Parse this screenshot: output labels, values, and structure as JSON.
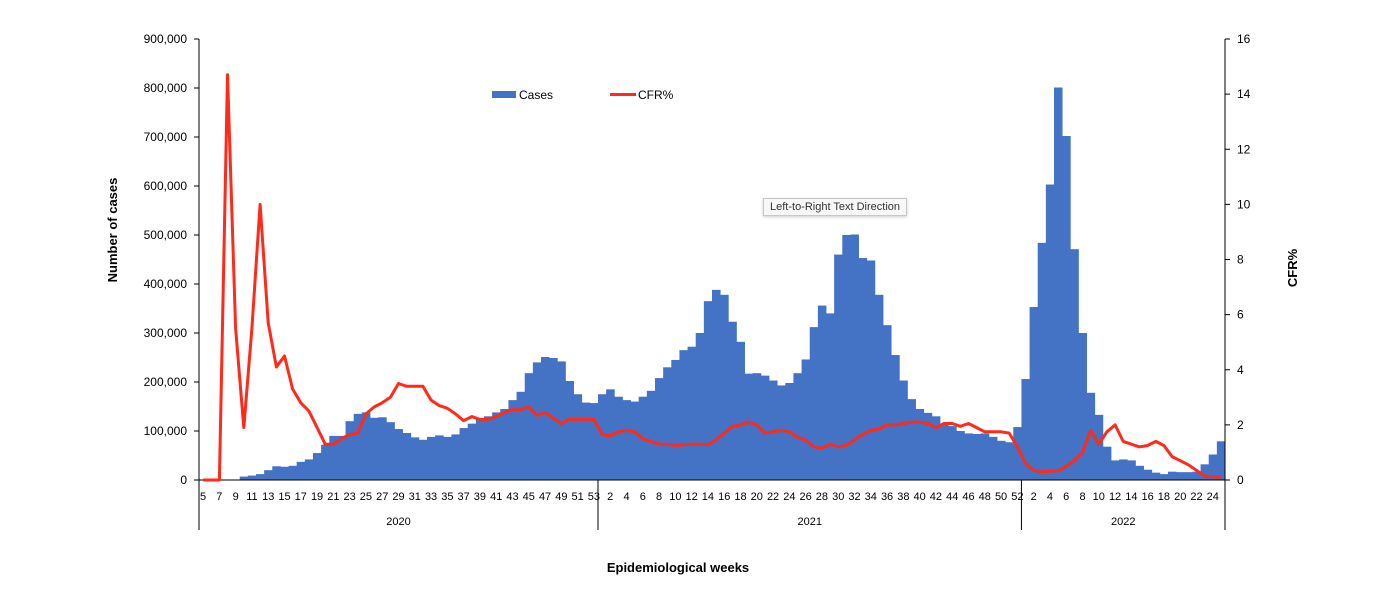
{
  "chart_data": {
    "type": "bar+line",
    "xlabel": "Epidemiological weeks",
    "ylabel": "Number of cases",
    "y2label": "CFR%",
    "ylim": [
      0,
      900000
    ],
    "y2lim": [
      0,
      16
    ],
    "yticks": [
      "0",
      "100,000",
      "200,000",
      "300,000",
      "400,000",
      "500,000",
      "600,000",
      "700,000",
      "800,000",
      "900,000"
    ],
    "y2ticks": [
      "0",
      "2",
      "4",
      "6",
      "8",
      "10",
      "12",
      "14",
      "16"
    ],
    "legend": {
      "position": "top-center",
      "entries": [
        "Cases",
        "CFR%"
      ]
    },
    "colors": {
      "cases": "#4472C4",
      "cfr": "#FF2A1A"
    },
    "years": [
      {
        "year": "2020",
        "start_week": 5,
        "weeks": 49,
        "label_parity": 1
      },
      {
        "year": "2021",
        "start_week": 1,
        "weeks": 52,
        "label_parity": 0
      },
      {
        "year": "2022",
        "start_week": 1,
        "weeks": 25,
        "label_parity": 0
      }
    ],
    "series": [
      {
        "name": "Cases",
        "type": "bar",
        "values": [
          0,
          0,
          0,
          0,
          0,
          7000,
          9000,
          12000,
          20000,
          28000,
          27000,
          29000,
          37000,
          42000,
          55000,
          72000,
          90000,
          90000,
          120000,
          135000,
          138000,
          127000,
          128000,
          118000,
          104000,
          96000,
          87000,
          82000,
          88000,
          91000,
          88000,
          93000,
          106000,
          115000,
          125000,
          130000,
          138000,
          145000,
          163000,
          180000,
          218000,
          240000,
          251000,
          249000,
          242000,
          202000,
          175000,
          158000,
          157000,
          175000,
          185000,
          170000,
          163000,
          160000,
          170000,
          182000,
          208000,
          230000,
          245000,
          265000,
          272000,
          300000,
          365000,
          388000,
          378000,
          323000,
          282000,
          217000,
          218000,
          213000,
          203000,
          193000,
          198000,
          218000,
          246000,
          312000,
          356000,
          340000,
          460000,
          500000,
          501000,
          453000,
          448000,
          378000,
          316000,
          255000,
          203000,
          165000,
          145000,
          137000,
          130000,
          113000,
          110000,
          100000,
          95000,
          94000,
          95000,
          88000,
          80000,
          77000,
          108000,
          206000,
          353000,
          484000,
          603000,
          801000,
          702000,
          471000,
          300000,
          178000,
          133000,
          68000,
          40000,
          42000,
          40000,
          29000,
          21000,
          15000,
          12000,
          17000,
          16000,
          16000,
          17000,
          32000,
          52000,
          79000
        ]
      },
      {
        "name": "CFR%",
        "type": "line",
        "axis": "right",
        "values": [
          0,
          0,
          0,
          14.7,
          5.5,
          1.9,
          5.5,
          10,
          5.7,
          4.1,
          4.5,
          3.3,
          2.8,
          2.5,
          1.9,
          1.3,
          1.3,
          1.5,
          1.65,
          1.7,
          2.4,
          2.65,
          2.8,
          3.0,
          3.5,
          3.4,
          3.4,
          3.4,
          2.9,
          2.7,
          2.6,
          2.4,
          2.15,
          2.3,
          2.2,
          2.2,
          2.3,
          2.45,
          2.55,
          2.55,
          2.65,
          2.35,
          2.45,
          2.25,
          2.05,
          2.2,
          2.2,
          2.2,
          2.2,
          1.65,
          1.6,
          1.75,
          1.8,
          1.75,
          1.5,
          1.4,
          1.3,
          1.3,
          1.25,
          1.28,
          1.3,
          1.3,
          1.28,
          1.45,
          1.7,
          1.95,
          2.0,
          2.1,
          2.0,
          1.7,
          1.75,
          1.8,
          1.75,
          1.55,
          1.45,
          1.2,
          1.15,
          1.3,
          1.2,
          1.25,
          1.45,
          1.65,
          1.8,
          1.85,
          2.0,
          2.0,
          2.05,
          2.1,
          2.1,
          2.05,
          1.9,
          2.05,
          2.05,
          1.95,
          2.05,
          1.9,
          1.75,
          1.75,
          1.75,
          1.7,
          1.2,
          0.6,
          0.35,
          0.3,
          0.32,
          0.33,
          0.5,
          0.7,
          1.0,
          1.8,
          1.3,
          1.75,
          2.0,
          1.4,
          1.3,
          1.2,
          1.25,
          1.4,
          1.25,
          0.85,
          0.7,
          0.55,
          0.35,
          0.15,
          0.12,
          0.1
        ]
      }
    ]
  },
  "tooltip": "Left-to-Right Text Direction"
}
